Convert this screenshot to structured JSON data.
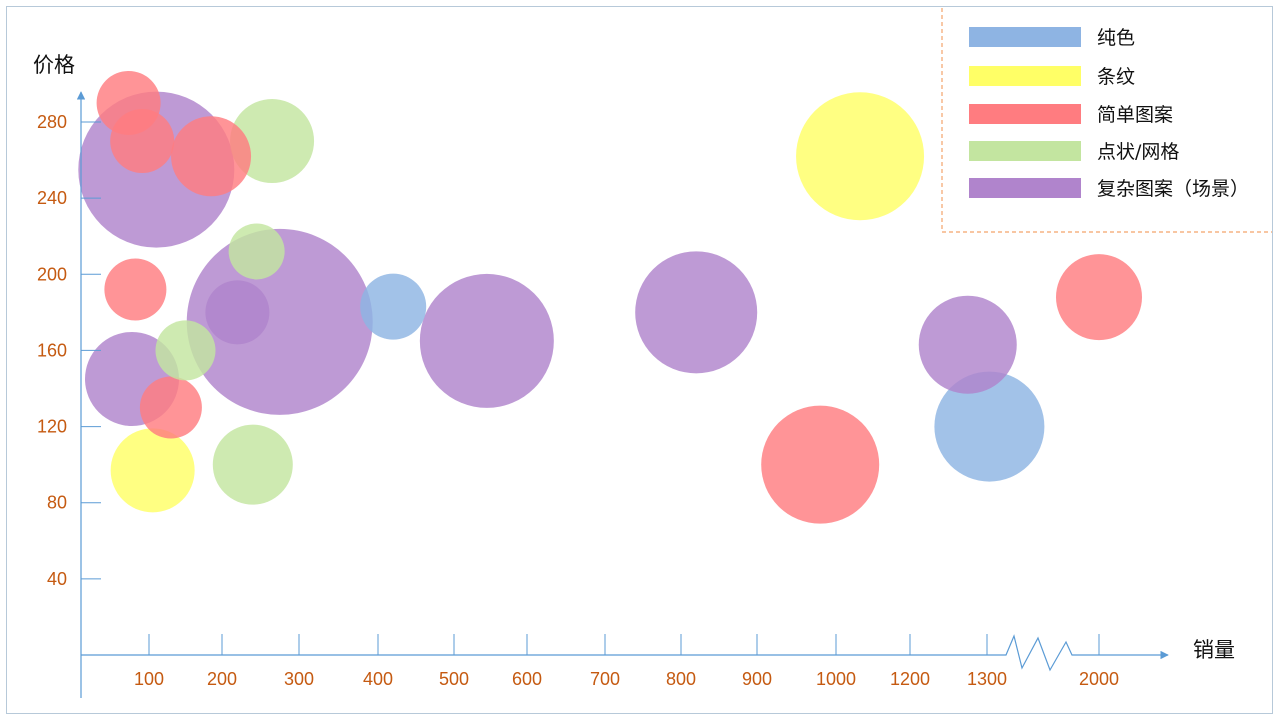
{
  "chart_data": {
    "type": "scatter",
    "subtype": "bubble",
    "xlabel": "销量",
    "ylabel": "价格",
    "x_ticks": [
      "100",
      "200",
      "300",
      "400",
      "500",
      "600",
      "700",
      "800",
      "900",
      "1000",
      "1200",
      "1300",
      "2000"
    ],
    "y_ticks": [
      "40",
      "80",
      "120",
      "160",
      "200",
      "240",
      "280"
    ],
    "x_axis_break": "between 1300 and 2000",
    "ylim": [
      0,
      300
    ],
    "grid": false,
    "legend_position": "top-right",
    "legend": [
      {
        "key": "solid",
        "label": "纯色",
        "color": "#8eb4e3"
      },
      {
        "key": "stripe",
        "label": "条纹",
        "color": "#ffff66"
      },
      {
        "key": "simple",
        "label": "简单图案",
        "color": "#ff7c80"
      },
      {
        "key": "dots",
        "label": "点状/网格",
        "color": "#c3e5a0"
      },
      {
        "key": "complex",
        "label": "复杂图案（场景）",
        "color": "#b084cc"
      }
    ],
    "points": [
      {
        "x": 70,
        "y": 290,
        "size": 32,
        "category": "simple"
      },
      {
        "x": 110,
        "y": 255,
        "size": 78,
        "category": "complex"
      },
      {
        "x": 90,
        "y": 270,
        "size": 32,
        "category": "simple"
      },
      {
        "x": 185,
        "y": 262,
        "size": 40,
        "category": "simple"
      },
      {
        "x": 265,
        "y": 270,
        "size": 42,
        "category": "dots"
      },
      {
        "x": 80,
        "y": 192,
        "size": 31,
        "category": "simple"
      },
      {
        "x": 245,
        "y": 212,
        "size": 28,
        "category": "dots"
      },
      {
        "x": 275,
        "y": 175,
        "size": 93,
        "category": "complex"
      },
      {
        "x": 220,
        "y": 180,
        "size": 32,
        "category": "complex"
      },
      {
        "x": 150,
        "y": 160,
        "size": 30,
        "category": "dots"
      },
      {
        "x": 75,
        "y": 145,
        "size": 47,
        "category": "complex"
      },
      {
        "x": 130,
        "y": 130,
        "size": 31,
        "category": "simple"
      },
      {
        "x": 105,
        "y": 97,
        "size": 42,
        "category": "stripe"
      },
      {
        "x": 240,
        "y": 100,
        "size": 40,
        "category": "dots"
      },
      {
        "x": 420,
        "y": 183,
        "size": 33,
        "category": "solid"
      },
      {
        "x": 545,
        "y": 165,
        "size": 67,
        "category": "complex"
      },
      {
        "x": 820,
        "y": 180,
        "size": 61,
        "category": "complex"
      },
      {
        "x": 980,
        "y": 100,
        "size": 59,
        "category": "simple"
      },
      {
        "x": 1065,
        "y": 262,
        "size": 64,
        "category": "stripe"
      },
      {
        "x": 1275,
        "y": 163,
        "size": 49,
        "category": "complex"
      },
      {
        "x": 1315,
        "y": 120,
        "size": 55,
        "category": "solid"
      },
      {
        "x": 2000,
        "y": 188,
        "size": 43,
        "category": "simple"
      }
    ]
  }
}
